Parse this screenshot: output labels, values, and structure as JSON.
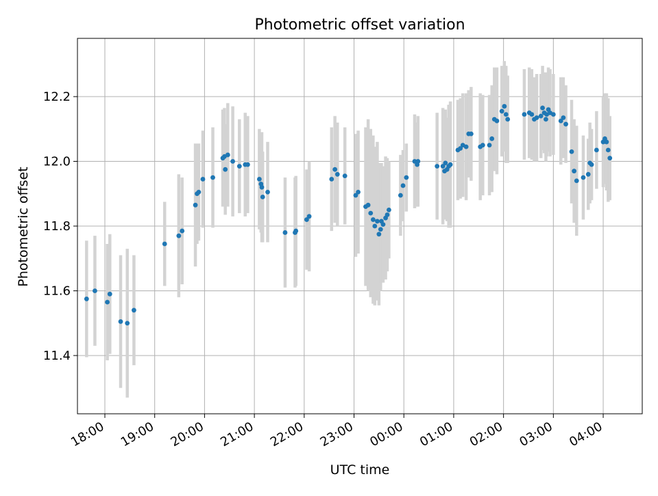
{
  "chart_data": {
    "type": "scatter",
    "title": "Photometric offset variation",
    "xlabel": "UTC time",
    "ylabel": "Photometric offset",
    "x_axis": "time",
    "x_range": [
      "17:27",
      "04:47"
    ],
    "ylim": [
      11.22,
      12.38
    ],
    "grid": true,
    "x_ticks": [
      "18:00",
      "19:00",
      "20:00",
      "21:00",
      "22:00",
      "23:00",
      "00:00",
      "01:00",
      "02:00",
      "03:00",
      "04:00"
    ],
    "y_ticks": [
      "11.4",
      "11.6",
      "11.8",
      "12.0",
      "12.2"
    ],
    "colors": {
      "point": "#1f77b4",
      "errorbar": "#d3d3d3",
      "grid": "#b0b0b0"
    },
    "points": [
      {
        "t": "17:38",
        "y": 11.575,
        "err": 0.18
      },
      {
        "t": "17:48",
        "y": 11.6,
        "err": 0.17
      },
      {
        "t": "18:03",
        "y": 11.565,
        "err": 0.18
      },
      {
        "t": "18:06",
        "y": 11.59,
        "err": 0.185
      },
      {
        "t": "18:19",
        "y": 11.505,
        "err": 0.205
      },
      {
        "t": "18:27",
        "y": 11.5,
        "err": 0.23
      },
      {
        "t": "18:35",
        "y": 11.54,
        "err": 0.17
      },
      {
        "t": "19:12",
        "y": 11.745,
        "err": 0.13
      },
      {
        "t": "19:29",
        "y": 11.77,
        "err": 0.19
      },
      {
        "t": "19:33",
        "y": 11.785,
        "err": 0.165
      },
      {
        "t": "19:49",
        "y": 11.865,
        "err": 0.19
      },
      {
        "t": "19:51",
        "y": 11.9,
        "err": 0.155
      },
      {
        "t": "19:53",
        "y": 11.905,
        "err": 0.15
      },
      {
        "t": "19:58",
        "y": 11.945,
        "err": 0.15
      },
      {
        "t": "20:10",
        "y": 11.95,
        "err": 0.155
      },
      {
        "t": "20:22",
        "y": 12.01,
        "err": 0.15
      },
      {
        "t": "20:24",
        "y": 12.015,
        "err": 0.15
      },
      {
        "t": "20:25",
        "y": 11.975,
        "err": 0.14
      },
      {
        "t": "20:28",
        "y": 12.02,
        "err": 0.16
      },
      {
        "t": "20:34",
        "y": 12.0,
        "err": 0.17
      },
      {
        "t": "20:42",
        "y": 11.985,
        "err": 0.145
      },
      {
        "t": "20:49",
        "y": 11.99,
        "err": 0.16
      },
      {
        "t": "20:52",
        "y": 11.99,
        "err": 0.15
      },
      {
        "t": "21:06",
        "y": 11.945,
        "err": 0.155
      },
      {
        "t": "21:08",
        "y": 11.93,
        "err": 0.15
      },
      {
        "t": "21:09",
        "y": 11.92,
        "err": 0.17
      },
      {
        "t": "21:10",
        "y": 11.89,
        "err": 0.14
      },
      {
        "t": "21:16",
        "y": 11.905,
        "err": 0.155
      },
      {
        "t": "21:37",
        "y": 11.78,
        "err": 0.17
      },
      {
        "t": "21:49",
        "y": 11.78,
        "err": 0.17
      },
      {
        "t": "21:50",
        "y": 11.785,
        "err": 0.17
      },
      {
        "t": "22:03",
        "y": 11.82,
        "err": 0.155
      },
      {
        "t": "22:06",
        "y": 11.83,
        "err": 0.17
      },
      {
        "t": "22:33",
        "y": 11.945,
        "err": 0.16
      },
      {
        "t": "22:37",
        "y": 11.975,
        "err": 0.165
      },
      {
        "t": "22:40",
        "y": 11.96,
        "err": 0.16
      },
      {
        "t": "22:49",
        "y": 11.955,
        "err": 0.15
      },
      {
        "t": "23:02",
        "y": 11.895,
        "err": 0.19
      },
      {
        "t": "23:05",
        "y": 11.905,
        "err": 0.19
      },
      {
        "t": "23:14",
        "y": 11.86,
        "err": 0.245
      },
      {
        "t": "23:17",
        "y": 11.865,
        "err": 0.265
      },
      {
        "t": "23:20",
        "y": 11.84,
        "err": 0.26
      },
      {
        "t": "23:23",
        "y": 11.82,
        "err": 0.26
      },
      {
        "t": "23:25",
        "y": 11.8,
        "err": 0.245
      },
      {
        "t": "23:28",
        "y": 11.815,
        "err": 0.245
      },
      {
        "t": "23:30",
        "y": 11.775,
        "err": 0.22
      },
      {
        "t": "23:32",
        "y": 11.79,
        "err": 0.19
      },
      {
        "t": "23:33",
        "y": 11.815,
        "err": 0.18
      },
      {
        "t": "23:35",
        "y": 11.805,
        "err": 0.18
      },
      {
        "t": "23:38",
        "y": 11.825,
        "err": 0.19
      },
      {
        "t": "23:40",
        "y": 11.835,
        "err": 0.175
      },
      {
        "t": "23:42",
        "y": 11.85,
        "err": 0.15
      },
      {
        "t": "23:56",
        "y": 11.895,
        "err": 0.125
      },
      {
        "t": "23:59",
        "y": 11.925,
        "err": 0.11
      },
      {
        "t": "00:03",
        "y": 11.95,
        "err": 0.105
      },
      {
        "t": "00:13",
        "y": 12.0,
        "err": 0.145
      },
      {
        "t": "00:16",
        "y": 11.99,
        "err": 0.13
      },
      {
        "t": "00:17",
        "y": 12.0,
        "err": 0.14
      },
      {
        "t": "00:40",
        "y": 11.985,
        "err": 0.165
      },
      {
        "t": "00:47",
        "y": 11.985,
        "err": 0.18
      },
      {
        "t": "00:49",
        "y": 11.97,
        "err": 0.15
      },
      {
        "t": "00:50",
        "y": 11.995,
        "err": 0.165
      },
      {
        "t": "00:52",
        "y": 11.975,
        "err": 0.16
      },
      {
        "t": "00:54",
        "y": 11.985,
        "err": 0.19
      },
      {
        "t": "00:56",
        "y": 11.99,
        "err": 0.195
      },
      {
        "t": "01:05",
        "y": 12.035,
        "err": 0.155
      },
      {
        "t": "01:08",
        "y": 12.04,
        "err": 0.155
      },
      {
        "t": "01:11",
        "y": 12.05,
        "err": 0.16
      },
      {
        "t": "01:15",
        "y": 12.045,
        "err": 0.165
      },
      {
        "t": "01:18",
        "y": 12.085,
        "err": 0.135
      },
      {
        "t": "01:21",
        "y": 12.085,
        "err": 0.145
      },
      {
        "t": "01:32",
        "y": 12.045,
        "err": 0.165
      },
      {
        "t": "01:35",
        "y": 12.05,
        "err": 0.155
      },
      {
        "t": "01:43",
        "y": 12.05,
        "err": 0.155
      },
      {
        "t": "01:46",
        "y": 12.07,
        "err": 0.165
      },
      {
        "t": "01:49",
        "y": 12.13,
        "err": 0.16
      },
      {
        "t": "01:52",
        "y": 12.125,
        "err": 0.165
      },
      {
        "t": "01:58",
        "y": 12.155,
        "err": 0.14
      },
      {
        "t": "02:01",
        "y": 12.17,
        "err": 0.14
      },
      {
        "t": "02:03",
        "y": 12.145,
        "err": 0.15
      },
      {
        "t": "02:05",
        "y": 12.13,
        "err": 0.135
      },
      {
        "t": "02:25",
        "y": 12.145,
        "err": 0.14
      },
      {
        "t": "02:31",
        "y": 12.15,
        "err": 0.14
      },
      {
        "t": "02:34",
        "y": 12.145,
        "err": 0.14
      },
      {
        "t": "02:37",
        "y": 12.13,
        "err": 0.13
      },
      {
        "t": "02:40",
        "y": 12.135,
        "err": 0.135
      },
      {
        "t": "02:45",
        "y": 12.14,
        "err": 0.13
      },
      {
        "t": "02:47",
        "y": 12.165,
        "err": 0.13
      },
      {
        "t": "02:49",
        "y": 12.15,
        "err": 0.125
      },
      {
        "t": "02:51",
        "y": 12.13,
        "err": 0.13
      },
      {
        "t": "02:52",
        "y": 12.145,
        "err": 0.13
      },
      {
        "t": "02:54",
        "y": 12.16,
        "err": 0.13
      },
      {
        "t": "02:56",
        "y": 12.15,
        "err": 0.135
      },
      {
        "t": "03:00",
        "y": 12.145,
        "err": 0.125
      },
      {
        "t": "03:09",
        "y": 12.125,
        "err": 0.135
      },
      {
        "t": "03:12",
        "y": 12.135,
        "err": 0.125
      },
      {
        "t": "03:15",
        "y": 12.115,
        "err": 0.12
      },
      {
        "t": "03:22",
        "y": 12.03,
        "err": 0.16
      },
      {
        "t": "03:25",
        "y": 11.97,
        "err": 0.16
      },
      {
        "t": "03:28",
        "y": 11.94,
        "err": 0.17
      },
      {
        "t": "03:36",
        "y": 11.95,
        "err": 0.13
      },
      {
        "t": "03:42",
        "y": 11.96,
        "err": 0.11
      },
      {
        "t": "03:44",
        "y": 11.995,
        "err": 0.125
      },
      {
        "t": "03:46",
        "y": 11.99,
        "err": 0.11
      },
      {
        "t": "03:52",
        "y": 12.035,
        "err": 0.12
      },
      {
        "t": "04:00",
        "y": 12.06,
        "err": 0.14
      },
      {
        "t": "04:02",
        "y": 12.07,
        "err": 0.14
      },
      {
        "t": "04:04",
        "y": 12.06,
        "err": 0.15
      },
      {
        "t": "04:06",
        "y": 12.035,
        "err": 0.16
      },
      {
        "t": "04:08",
        "y": 12.01,
        "err": 0.13
      }
    ]
  }
}
